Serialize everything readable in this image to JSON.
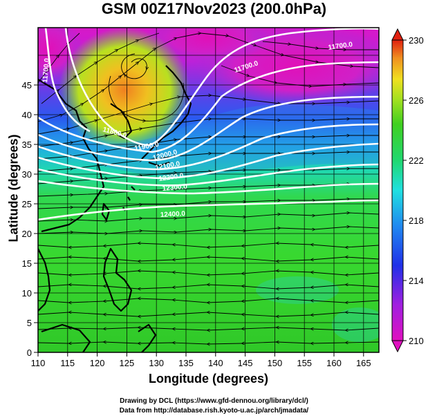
{
  "title": "GSM 00Z17Nov2023 (200.0hPa)",
  "xlabel": "Longitude (degrees)",
  "ylabel": "Latitude  (degrees)",
  "x_ticks": [
    "110",
    "115",
    "120",
    "125",
    "130",
    "135",
    "140",
    "145",
    "150",
    "155",
    "160",
    "165"
  ],
  "y_ticks": [
    "0",
    "5",
    "10",
    "15",
    "20",
    "25",
    "30",
    "35",
    "40",
    "45"
  ],
  "colorbar_ticks": [
    "210",
    "214",
    "218",
    "222",
    "226",
    "230"
  ],
  "contour_labels": [
    "11700.0",
    "11700.0",
    "11700.0",
    "11800.0",
    "11900.0",
    "12000.0",
    "12100.0",
    "12200.0",
    "12300.0",
    "12400.0"
  ],
  "credit_line1": "Drawing by DCL (https://www.gfd-dennou.org/library/dcl/)",
  "credit_line2": "Data from http://database.rish.kyoto-u.ac.jp/arch/jmadata/",
  "colors": {
    "magenta": "#e010c0",
    "purple": "#7a20e0",
    "blue": "#2040f0",
    "cyan": "#20d0e0",
    "green": "#30d020",
    "yellow": "#e0e020",
    "orange": "#f0a020",
    "red": "#e02010"
  }
}
